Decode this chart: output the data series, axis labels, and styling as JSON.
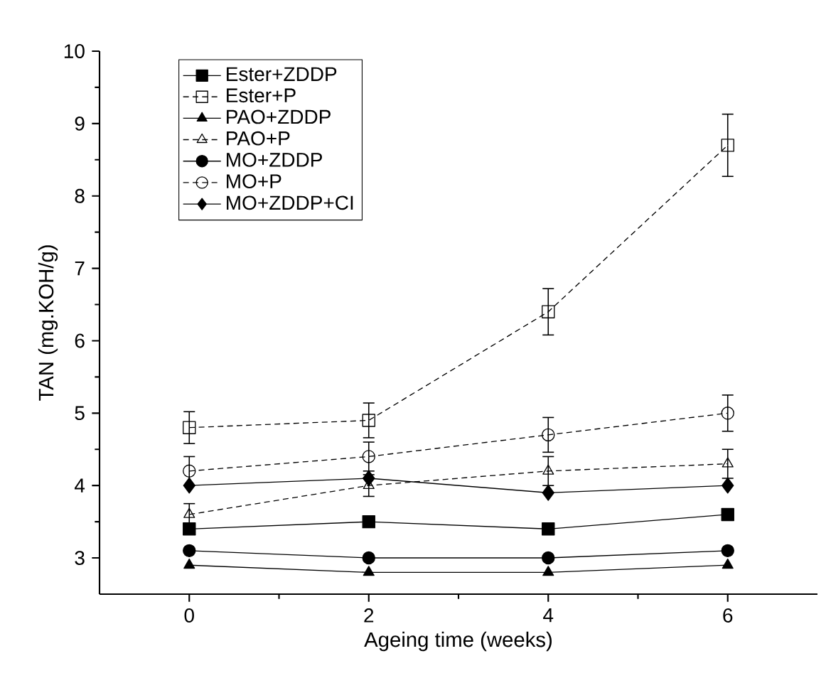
{
  "chart_data": {
    "type": "line",
    "xlabel": "Ageing time (weeks)",
    "ylabel": "TAN (mg.KOH/g)",
    "x": [
      0,
      2,
      4,
      6
    ],
    "xlim": [
      -1,
      7
    ],
    "xticks": [
      0,
      2,
      4,
      6
    ],
    "ylim": [
      2.5,
      10
    ],
    "yticks": [
      3,
      4,
      5,
      6,
      7,
      8,
      9,
      10
    ],
    "legend": "top left",
    "grid": false,
    "series": [
      {
        "name": "Ester+ZDDP",
        "color": "#000000",
        "marker": "square",
        "line_style": "solid",
        "values": [
          3.4,
          3.5,
          3.4,
          3.6
        ]
      },
      {
        "name": "Ester+P",
        "color": "#000000",
        "marker": "square",
        "line_style": "dashed",
        "values": [
          4.8,
          4.9,
          6.4,
          8.7
        ],
        "errors": [
          0.22,
          0.24,
          0.32,
          0.43
        ]
      },
      {
        "name": "PAO+ZDDP",
        "color": "#000000",
        "marker": "triangle",
        "line_style": "solid",
        "values": [
          2.9,
          2.8,
          2.8,
          2.9
        ]
      },
      {
        "name": "PAO+P",
        "color": "#000000",
        "marker": "triangle",
        "line_style": "dashed",
        "values": [
          3.6,
          4.0,
          4.2,
          4.3
        ],
        "errors": [
          0.15,
          0.15,
          0.2,
          0.2
        ]
      },
      {
        "name": "MO+ZDDP",
        "color": "#000000",
        "marker": "circle",
        "line_style": "solid",
        "values": [
          3.1,
          3.0,
          3.0,
          3.1
        ]
      },
      {
        "name": "MO+P",
        "color": "#000000",
        "marker": "circle",
        "line_style": "dashed",
        "values": [
          4.2,
          4.4,
          4.7,
          5.0
        ],
        "errors": [
          0.2,
          0.2,
          0.24,
          0.25
        ]
      },
      {
        "name": "MO+ZDDP+CI",
        "color": "#000000",
        "marker": "diamond",
        "line_style": "solid",
        "values": [
          4.0,
          4.1,
          3.9,
          4.0
        ]
      }
    ]
  }
}
